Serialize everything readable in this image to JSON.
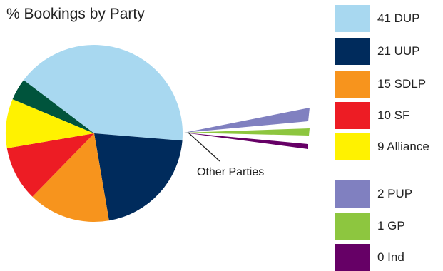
{
  "chart_data": {
    "type": "pie",
    "title": "% Bookings by Party",
    "slices": [
      {
        "label": "DUP",
        "legend": "41 DUP",
        "value": 41,
        "color": "#a8d8f0"
      },
      {
        "label": "UUP",
        "legend": "21 UUP",
        "value": 21,
        "color": "#002b5c"
      },
      {
        "label": "SDLP",
        "legend": "15 SDLP",
        "value": 15,
        "color": "#f7941d"
      },
      {
        "label": "SF",
        "legend": "10 SF",
        "value": 10,
        "color": "#ed1c24"
      },
      {
        "label": "Alliance",
        "legend": "9 Alliance",
        "value": 9,
        "color": "#fff200"
      },
      {
        "label": "Other",
        "legend": "",
        "value": 4,
        "color": "#00543c"
      }
    ],
    "other_label": "Other Parties",
    "other_breakdown": [
      {
        "label": "PUP",
        "legend": "2 PUP",
        "value": 2,
        "color": "#8080c0"
      },
      {
        "label": "GP",
        "legend": "1 GP",
        "value": 1,
        "color": "#8dc63f"
      },
      {
        "label": "Ind",
        "legend": "0 Ind",
        "value": 0,
        "color": "#660066"
      }
    ]
  }
}
